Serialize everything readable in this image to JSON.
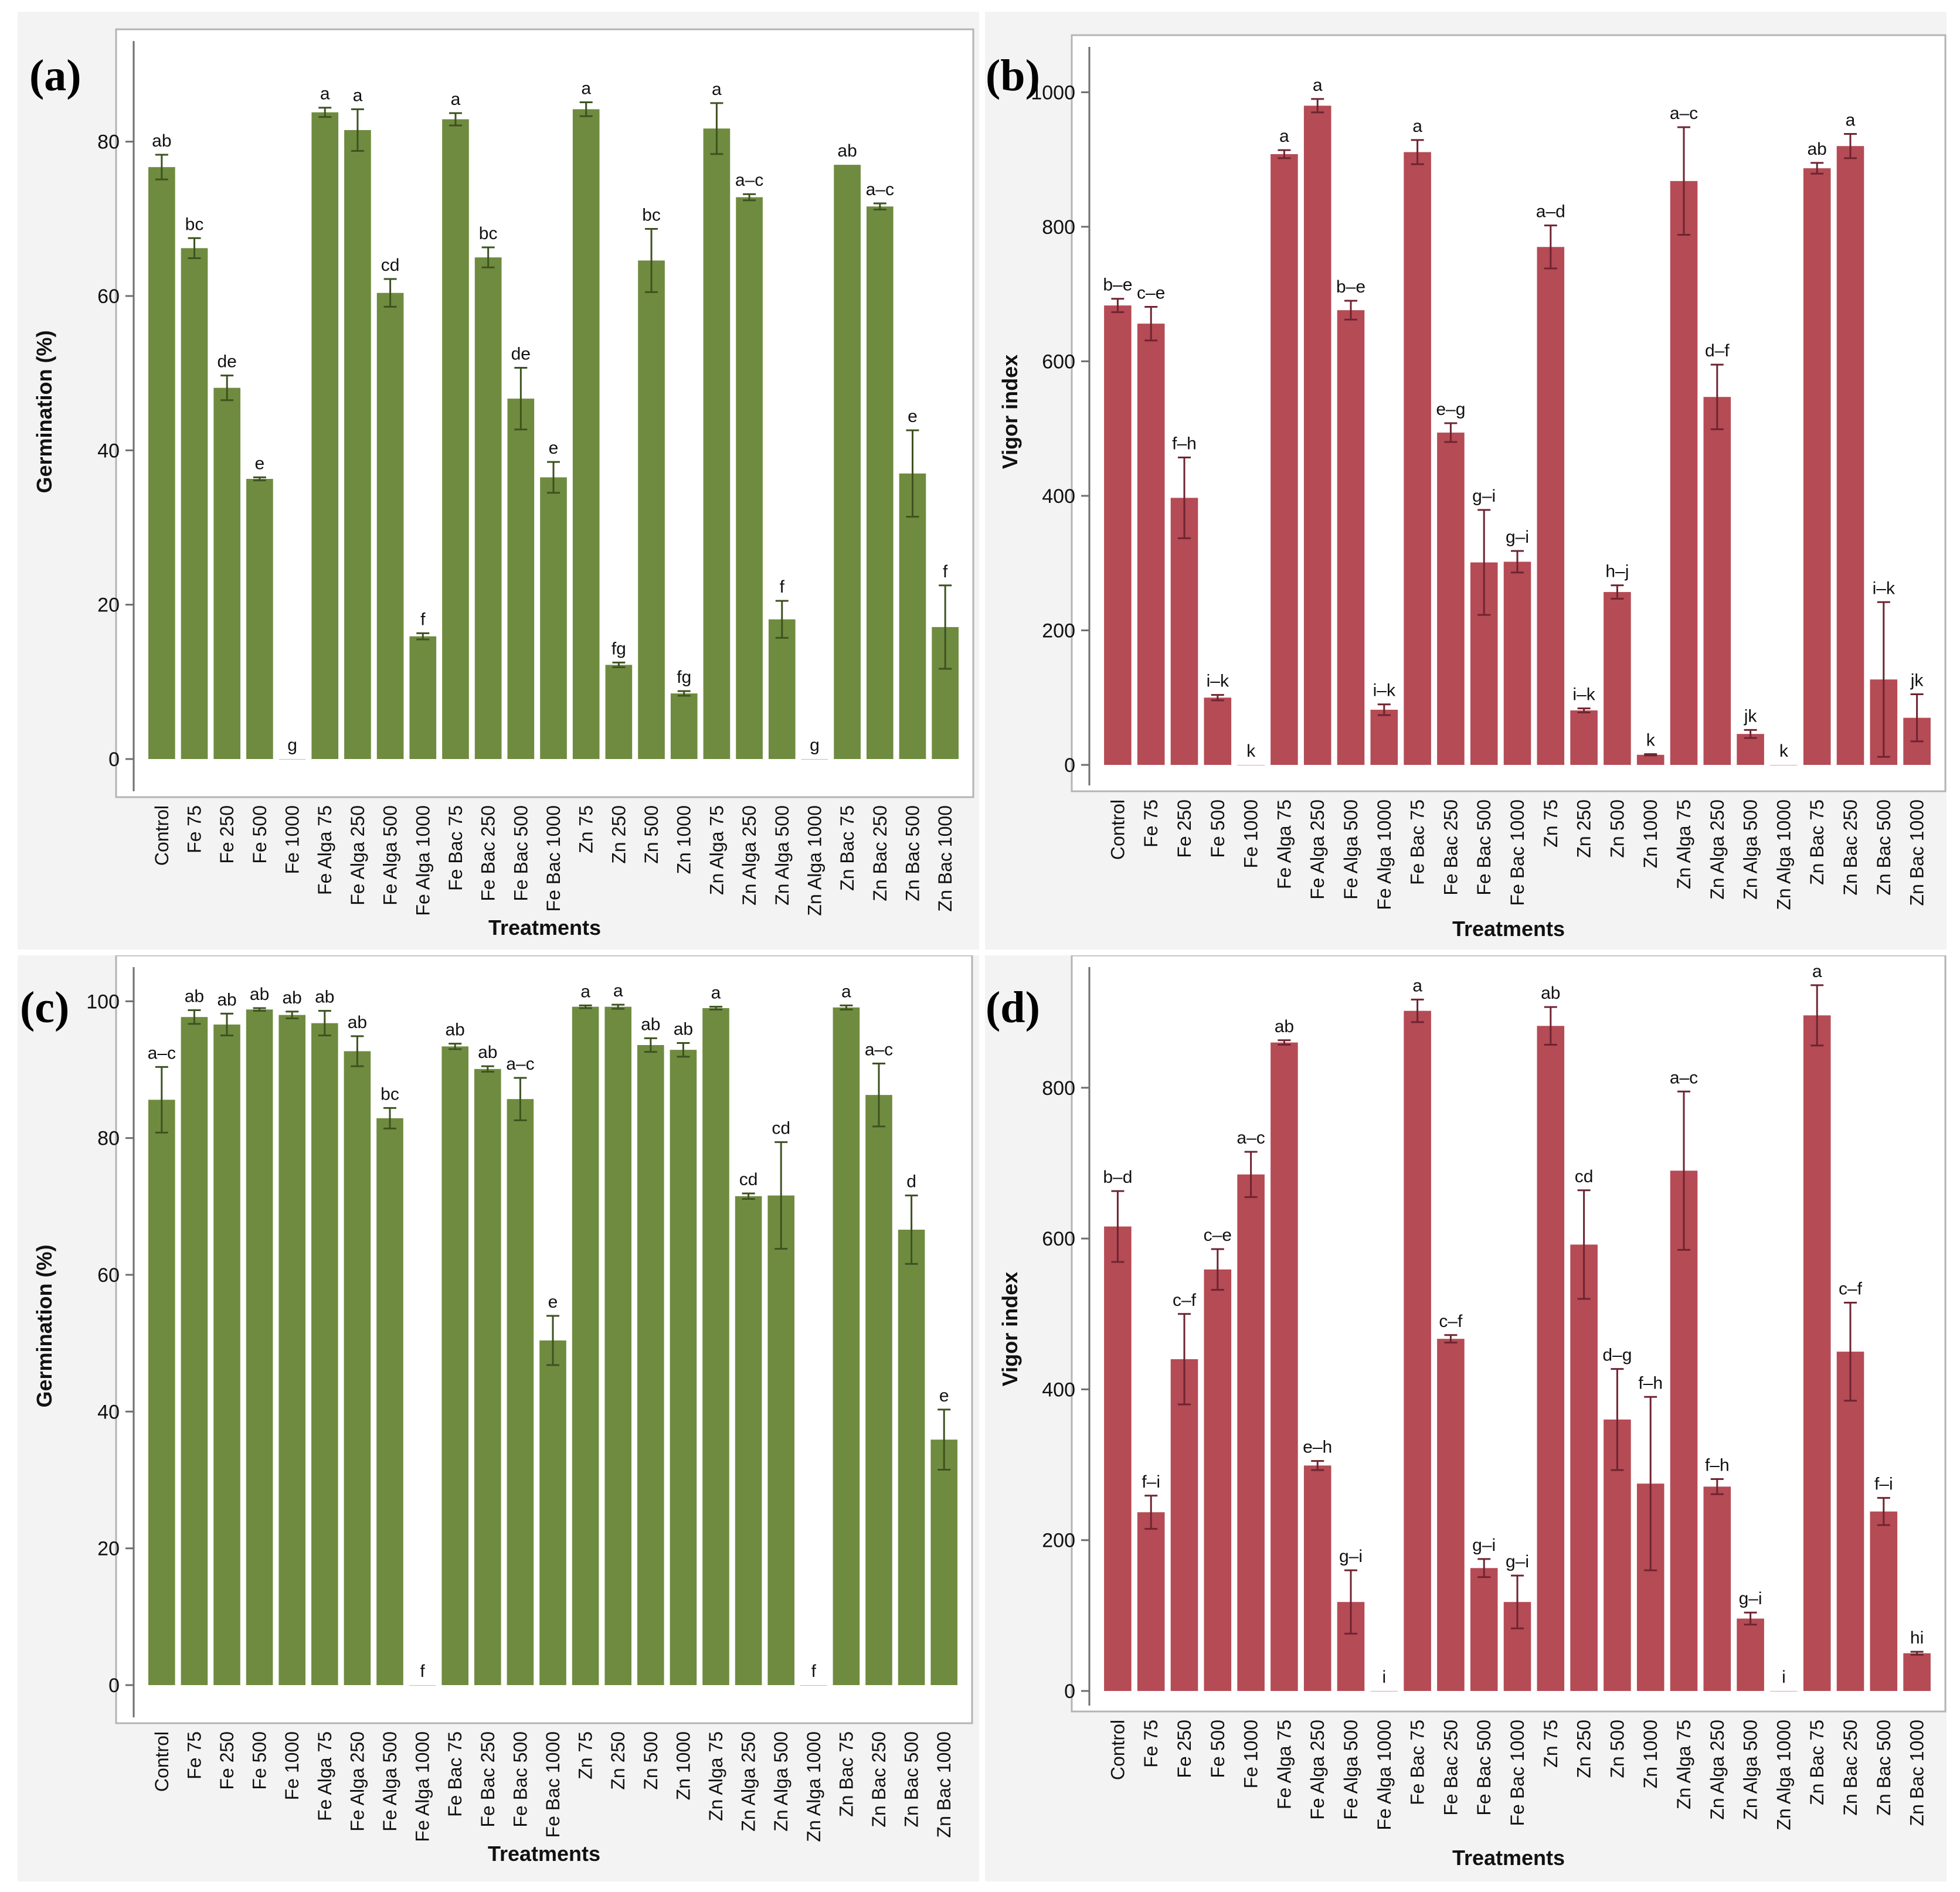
{
  "categories": [
    "Control",
    "Fe 75",
    "Fe 250",
    "Fe 500",
    "Fe 1000",
    "Fe Alga 75",
    "Fe Alga 250",
    "Fe Alga 500",
    "Fe Alga 1000",
    "Fe Bac 75",
    "Fe Bac 250",
    "Fe Bac 500",
    "Fe Bac 1000",
    "Zn 75",
    "Zn 250",
    "Zn 500",
    "Zn 1000",
    "Zn Alga 75",
    "Zn Alga 250",
    "Zn Alga 500",
    "Zn Alga 1000",
    "Zn Bac 75",
    "Zn Bac 250",
    "Zn Bac 500",
    "Zn Bac 1000"
  ],
  "chart_data": [
    {
      "panel": "(a)",
      "type": "bar",
      "color": "#6f8b3f",
      "error_color": "#3d5220",
      "xlabel": "Treatments",
      "ylabel": "Germination (%)",
      "ylim": [
        0,
        90
      ],
      "yticks": [
        0,
        20,
        40,
        60,
        80
      ],
      "values": [
        76.7,
        66.2,
        48.1,
        36.3,
        0,
        83.8,
        81.5,
        60.4,
        15.9,
        82.9,
        65.0,
        46.7,
        36.5,
        84.2,
        12.2,
        64.6,
        8.5,
        81.7,
        72.8,
        18.1,
        0,
        77.0,
        71.6,
        37.0,
        17.1
      ],
      "errors": [
        1.6,
        1.3,
        1.6,
        0.2,
        0,
        0.6,
        2.7,
        1.8,
        0.4,
        0.8,
        1.3,
        4.0,
        2.0,
        0.9,
        0.3,
        4.1,
        0.3,
        3.3,
        0.4,
        2.4,
        0,
        0,
        0.4,
        5.6,
        5.4
      ],
      "letters": [
        "ab",
        "bc",
        "de",
        "e",
        "g",
        "a",
        "a",
        "cd",
        "f",
        "a",
        "bc",
        "de",
        "e",
        "a",
        "fg",
        "bc",
        "fg",
        "a",
        "a–c",
        "f",
        "g",
        "ab",
        "a–c",
        "e",
        "f"
      ]
    },
    {
      "panel": "(b)",
      "type": "bar",
      "color": "#b54b55",
      "error_color": "#6e2430",
      "xlabel": "Treatments",
      "ylabel": "Vigor index",
      "ylim": [
        0,
        1050
      ],
      "yticks": [
        0,
        200,
        400,
        600,
        800,
        1000
      ],
      "values": [
        683,
        656,
        397,
        100,
        0,
        908,
        980,
        676,
        82,
        911,
        494,
        301,
        302,
        770,
        81,
        257,
        15,
        868,
        547,
        46,
        0,
        887,
        920,
        127,
        70
      ],
      "errors": [
        10,
        25,
        60,
        4,
        0,
        6,
        10,
        14,
        8,
        18,
        14,
        78,
        16,
        32,
        3,
        10,
        1,
        80,
        48,
        6,
        0,
        8,
        18,
        115,
        35
      ],
      "letters": [
        "b–e",
        "c–e",
        "f–h",
        "i–k",
        "k",
        "a",
        "a",
        "b–e",
        "i–k",
        "a",
        "e–g",
        "g–i",
        "g–i",
        "a–d",
        "i–k",
        "h–j",
        "k",
        "a–c",
        "d–f",
        "jk",
        "k",
        "ab",
        "a",
        "i–k",
        "jk"
      ]
    },
    {
      "panel": "(c)",
      "type": "bar",
      "color": "#6f8b3f",
      "error_color": "#3d5220",
      "xlabel": "Treatments",
      "ylabel": "Germination (%)",
      "ylim": [
        0,
        105
      ],
      "yticks": [
        0,
        20,
        40,
        60,
        80,
        100
      ],
      "values": [
        85.6,
        97.7,
        96.6,
        98.8,
        98.0,
        96.8,
        92.7,
        82.9,
        0,
        93.4,
        90.1,
        85.7,
        50.4,
        99.2,
        99.2,
        93.6,
        92.9,
        99.0,
        71.5,
        71.6,
        0,
        99.1,
        86.3,
        66.6,
        35.9
      ],
      "errors": [
        4.8,
        1.0,
        1.6,
        0.2,
        0.5,
        1.8,
        2.2,
        1.5,
        0,
        0.4,
        0.4,
        3.1,
        3.6,
        0.2,
        0.3,
        1.0,
        1.0,
        0.2,
        0.4,
        7.8,
        0,
        0.3,
        4.6,
        5.0,
        4.4
      ],
      "letters": [
        "a–c",
        "ab",
        "ab",
        "ab",
        "ab",
        "ab",
        "ab",
        "bc",
        "f",
        "ab",
        "ab",
        "a–c",
        "e",
        "a",
        "a",
        "ab",
        "ab",
        "a",
        "cd",
        "cd",
        "f",
        "a",
        "a–c",
        "d",
        "e"
      ]
    },
    {
      "panel": "(d)",
      "type": "bar",
      "color": "#b54b55",
      "error_color": "#6e2430",
      "xlabel": "Treatments",
      "ylabel": "Vigor index",
      "ylim": [
        0,
        960
      ],
      "yticks": [
        0,
        200,
        400,
        600,
        800
      ],
      "values": [
        616,
        237,
        440,
        559,
        685,
        860,
        299,
        118,
        0,
        902,
        467,
        163,
        118,
        882,
        592,
        360,
        275,
        690,
        271,
        96,
        0,
        896,
        450,
        238,
        50
      ],
      "errors": [
        47,
        22,
        60,
        27,
        30,
        3,
        6,
        42,
        0,
        15,
        5,
        12,
        35,
        25,
        72,
        67,
        115,
        105,
        10,
        8,
        0,
        40,
        65,
        18,
        2
      ],
      "letters": [
        "b–d",
        "f–i",
        "c–f",
        "c–e",
        "a–c",
        "ab",
        "e–h",
        "g–i",
        "i",
        "a",
        "c–f",
        "g–i",
        "g–i",
        "ab",
        "cd",
        "d–g",
        "f–h",
        "a–c",
        "f–h",
        "g–i",
        "i",
        "a",
        "c–f",
        "f–i",
        "hi"
      ]
    }
  ]
}
